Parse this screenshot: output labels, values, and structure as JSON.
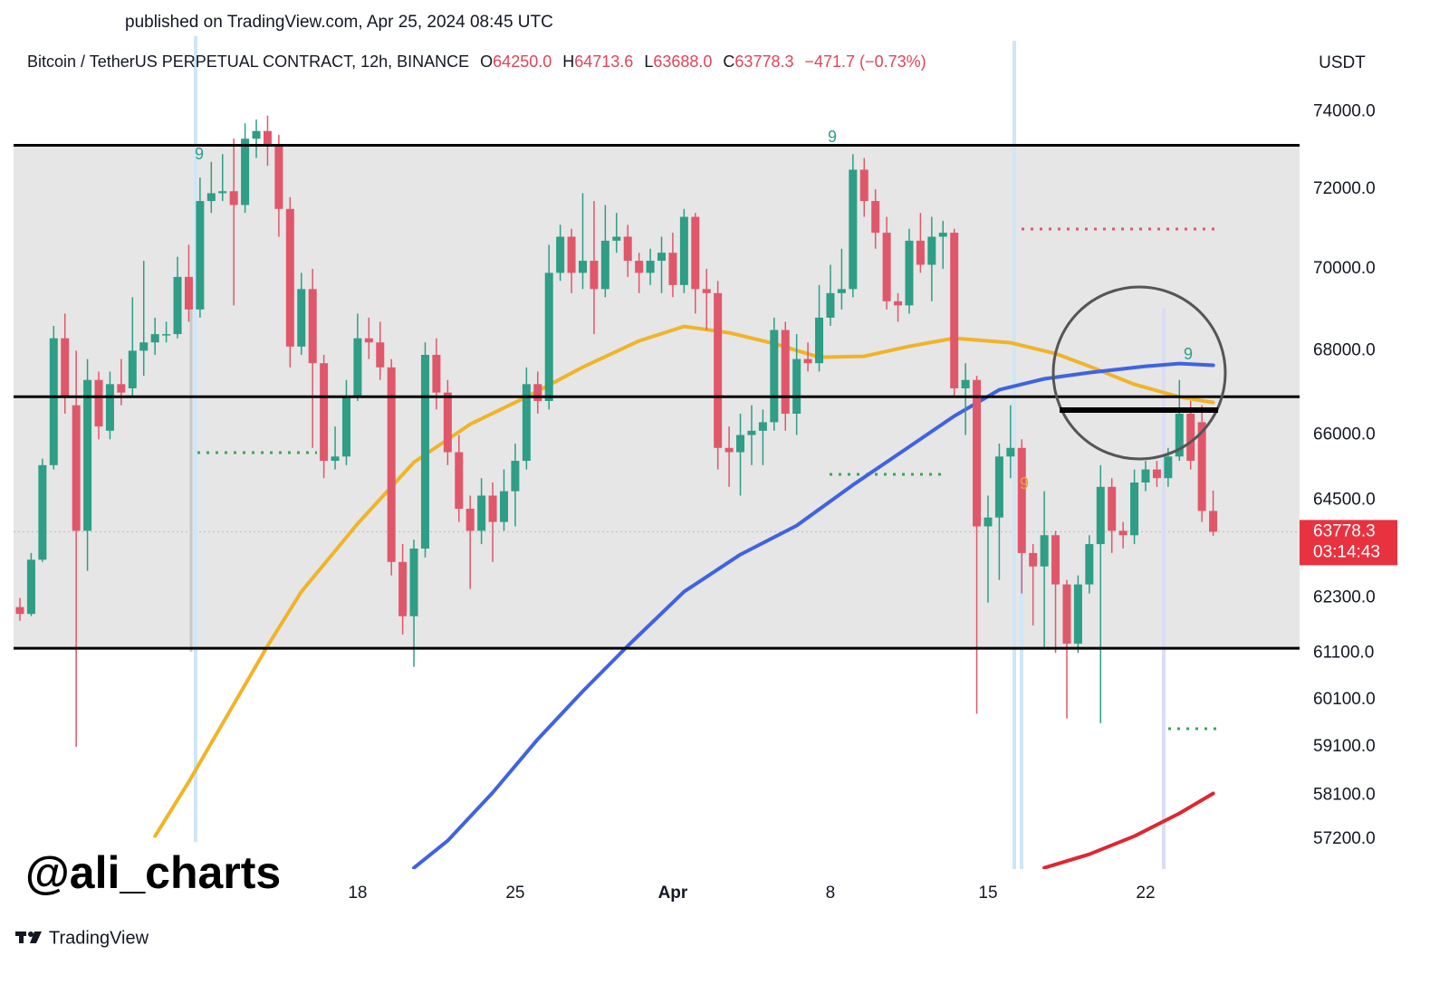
{
  "chart_data": {
    "type": "candlestick",
    "published": "published on TradingView.com, Apr 25, 2024 08:45 UTC",
    "symbol": "Bitcoin / TetherUS PERPETUAL CONTRACT, 12h, BINANCE",
    "ohlc_header": [
      {
        "label": "O",
        "value": "64250.0"
      },
      {
        "label": "H",
        "value": "64713.6"
      },
      {
        "label": "L",
        "value": "63688.0"
      },
      {
        "label": "C",
        "value": "63778.3"
      }
    ],
    "change": "−471.7 (−0.73%)",
    "currency": "USDT",
    "watermark": "@ali_charts",
    "brand": "TradingView",
    "log_scale": true,
    "up_color": "#2e9e86",
    "down_color": "#e0576a",
    "categories": [
      null,
      null,
      null,
      null,
      null,
      null,
      null,
      null,
      null,
      null,
      null,
      null,
      null,
      null,
      null,
      null,
      null,
      null,
      null,
      null,
      null,
      null,
      null,
      null,
      null,
      null,
      null,
      null,
      null,
      null,
      "18",
      null,
      null,
      null,
      null,
      null,
      null,
      null,
      null,
      null,
      null,
      null,
      null,
      null,
      "25",
      null,
      null,
      null,
      null,
      null,
      null,
      null,
      null,
      null,
      null,
      null,
      null,
      null,
      "Apr",
      null,
      null,
      null,
      null,
      null,
      null,
      null,
      null,
      null,
      null,
      null,
      null,
      null,
      "8",
      null,
      null,
      null,
      null,
      null,
      null,
      null,
      null,
      null,
      null,
      null,
      null,
      null,
      "15",
      null,
      null,
      null,
      null,
      null,
      null,
      null,
      null,
      null,
      null,
      null,
      null,
      null,
      "22",
      null,
      null,
      null,
      null,
      null,
      null
    ],
    "open": [
      62100,
      61950,
      63150,
      65300,
      68300,
      66700,
      63800,
      67300,
      66100,
      67200,
      67100,
      68000,
      68200,
      68400,
      68400,
      69800,
      69000,
      71700,
      71900,
      71950,
      71600,
      73300,
      73500,
      73100,
      71500,
      68100,
      69500,
      67700,
      65400,
      65500,
      66900,
      68300,
      68200,
      67600,
      63100,
      61900,
      63400,
      67900,
      67000,
      65600,
      64300,
      63800,
      64600,
      64000,
      64700,
      65400,
      67200,
      66800,
      69900,
      70800,
      69900,
      70200,
      69500,
      70700,
      70800,
      70200,
      69900,
      70200,
      70400,
      69600,
      71300,
      69500,
      69400,
      65700,
      65600,
      66000,
      66100,
      66300,
      68500,
      66500,
      67800,
      67700,
      68800,
      69400,
      69500,
      72500,
      71700,
      70900,
      69200,
      69100,
      70700,
      70100,
      70800,
      70900,
      67100,
      67300,
      63900,
      64100,
      65500,
      65700,
      63300,
      63000,
      63700,
      62600,
      61300,
      62600,
      63500,
      64800,
      63800,
      63700,
      64900,
      65200,
      65000,
      65500,
      66500,
      66300,
      64250
    ],
    "high": [
      62300,
      63300,
      65450,
      68600,
      68900,
      68000,
      67800,
      67500,
      67500,
      67800,
      69300,
      70200,
      68800,
      68700,
      70300,
      70600,
      72300,
      72700,
      72900,
      73300,
      73700,
      73800,
      73900,
      73400,
      71800,
      69900,
      70000,
      67900,
      66200,
      67300,
      68900,
      68800,
      68700,
      67800,
      63500,
      63600,
      68200,
      68300,
      67300,
      66000,
      64600,
      65000,
      64900,
      65200,
      65800,
      67600,
      67500,
      70600,
      71100,
      71000,
      71900,
      71700,
      71600,
      71400,
      71100,
      70400,
      70500,
      70800,
      70900,
      71500,
      71400,
      70000,
      69700,
      66200,
      66500,
      66700,
      66600,
      68800,
      68700,
      68400,
      68200,
      69600,
      70100,
      70500,
      72900,
      72800,
      72000,
      71300,
      69400,
      71000,
      71400,
      71300,
      71200,
      71000,
      67700,
      67400,
      64600,
      65800,
      66700,
      65900,
      63500,
      64700,
      63800,
      62700,
      62800,
      63700,
      65300,
      65000,
      64000,
      65200,
      65400,
      65400,
      65700,
      67300,
      66800,
      66700,
      64713.6
    ],
    "low": [
      61800,
      61900,
      63100,
      65200,
      66500,
      59100,
      62900,
      65900,
      65900,
      66700,
      66900,
      67400,
      67900,
      68200,
      68300,
      68700,
      68800,
      71400,
      71700,
      69100,
      71400,
      72800,
      72600,
      70800,
      67600,
      67900,
      65700,
      65000,
      65200,
      65300,
      66800,
      67800,
      67300,
      62800,
      61500,
      60800,
      63200,
      66600,
      65300,
      64000,
      62500,
      63500,
      63100,
      63800,
      63900,
      65200,
      66500,
      66600,
      69700,
      69400,
      69500,
      68400,
      69300,
      70400,
      69800,
      69400,
      69600,
      69400,
      69300,
      69400,
      68900,
      68500,
      65200,
      64800,
      64600,
      65300,
      65300,
      66100,
      66100,
      66000,
      67500,
      67500,
      68600,
      69000,
      69300,
      71300,
      70500,
      69000,
      68700,
      68900,
      69900,
      69200,
      70000,
      66900,
      66000,
      59800,
      62200,
      62700,
      65000,
      62400,
      61700,
      61200,
      61100,
      59700,
      61100,
      62400,
      59600,
      63300,
      63400,
      63500,
      64700,
      64800,
      64800,
      65400,
      65200,
      64000,
      63688
    ],
    "close": [
      61950,
      63150,
      65300,
      68300,
      66900,
      63800,
      67300,
      66200,
      67200,
      67000,
      68000,
      68200,
      68400,
      68400,
      69800,
      69000,
      71700,
      71900,
      71950,
      71600,
      73300,
      73500,
      73100,
      71500,
      68100,
      69500,
      67700,
      65400,
      65500,
      66900,
      68300,
      68200,
      67600,
      63100,
      61900,
      63400,
      67900,
      67000,
      65600,
      64300,
      63800,
      64600,
      64000,
      64700,
      65400,
      67200,
      66800,
      69900,
      70800,
      69900,
      70200,
      69500,
      70700,
      70800,
      70200,
      69900,
      70200,
      70400,
      69600,
      71300,
      69500,
      69400,
      65700,
      65600,
      66000,
      66100,
      66300,
      68500,
      66500,
      67800,
      67700,
      68800,
      69400,
      69500,
      72500,
      71700,
      70900,
      69200,
      69100,
      70700,
      70100,
      70800,
      70900,
      67100,
      67300,
      63900,
      64100,
      65500,
      65700,
      63300,
      63000,
      63700,
      62600,
      61300,
      62600,
      63500,
      64800,
      63800,
      63700,
      64900,
      65200,
      65000,
      65500,
      66500,
      65400,
      64250,
      63778.3
    ],
    "ylim": [
      56600,
      74800
    ],
    "yticks": [
      {
        "value": 74000,
        "label": "74000.0"
      },
      {
        "value": 72000,
        "label": "72000.0"
      },
      {
        "value": 70000,
        "label": "70000.0"
      },
      {
        "value": 68000,
        "label": "68000.0"
      },
      {
        "value": 66000,
        "label": "66000.0"
      },
      {
        "value": 64500,
        "label": "64500.0"
      },
      {
        "value": 62300,
        "label": "62300.0"
      },
      {
        "value": 61100,
        "label": "61100.0"
      },
      {
        "value": 60100,
        "label": "60100.0"
      },
      {
        "value": 59100,
        "label": "59100.0"
      },
      {
        "value": 58100,
        "label": "58100.0"
      },
      {
        "value": 57200,
        "label": "57200.0"
      }
    ],
    "levels": [
      73130,
      66900,
      61200
    ],
    "level_color": "#000000",
    "range_fill": "#e6e6e6",
    "lines": [
      {
        "color": "#f0b429",
        "x": [
          12,
          15,
          22,
          25,
          30,
          35,
          40,
          45,
          50,
          55,
          59,
          63,
          67,
          71,
          75,
          79,
          83,
          88,
          92,
          95,
          99,
          103,
          106
        ],
        "values": [
          57262,
          58374,
          61253,
          62439,
          63961,
          65368,
          66253,
          66896,
          67605,
          68236,
          68587,
          68434,
          68170,
          67843,
          67866,
          68105,
          68302,
          68192,
          67930,
          67627,
          67195,
          66896,
          66766
        ]
      },
      {
        "color": "#3f63e0",
        "x": [
          35,
          38,
          42,
          46,
          50,
          54,
          59,
          64,
          69,
          74,
          79,
          83,
          87,
          91,
          95,
          100,
          103,
          106
        ],
        "values": [
          56624,
          57171,
          58154,
          59262,
          60277,
          61253,
          62439,
          63265,
          63918,
          64845,
          65727,
          66445,
          67065,
          67326,
          67475,
          67627,
          67692,
          67650
        ]
      },
      {
        "color": "#e0262f",
        "x": [
          91,
          95,
          99,
          103,
          106
        ],
        "values": [
          56624,
          56897,
          57262,
          57727,
          58135
        ]
      }
    ],
    "annotations": [
      {
        "text": "9",
        "color": "#2e9e86"
      },
      {
        "text": "9",
        "color": "#2e9e86"
      },
      {
        "text": "9",
        "color": "#f0a030"
      },
      {
        "text": "9",
        "color": "#2e9e86"
      }
    ],
    "price_tag": {
      "price": 63778.3,
      "countdown": "03:14:43",
      "color": "#e8323f"
    }
  }
}
